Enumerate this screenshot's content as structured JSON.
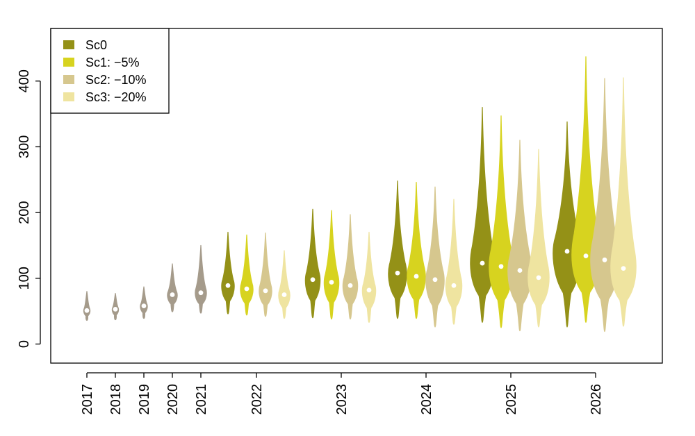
{
  "chart_data": {
    "type": "violin",
    "title": "",
    "xlabel": "",
    "ylabel": "",
    "ylim": [
      -29,
      480
    ],
    "y_ticks": [
      "0",
      "100",
      "200",
      "300",
      "400"
    ],
    "categories": [
      "2017",
      "2018",
      "2019",
      "2020",
      "2021",
      "2022",
      "2023",
      "2024",
      "2025",
      "2026"
    ],
    "historical_color": "#a59b8b",
    "legend": {
      "position": "top-left",
      "entries": [
        {
          "label": "Sc0",
          "color": "#949117"
        },
        {
          "label": "Sc1: −5%",
          "color": "#d7d31f"
        },
        {
          "label": "Sc2: −10%",
          "color": "#d6c78e"
        },
        {
          "label": "Sc3: −20%",
          "color": "#efe4a0"
        }
      ]
    },
    "historical": [
      {
        "year": "2017",
        "min": 36,
        "max": 80,
        "median": 51,
        "spread": 9
      },
      {
        "year": "2018",
        "min": 37,
        "max": 77,
        "median": 53,
        "spread": 9
      },
      {
        "year": "2019",
        "min": 39,
        "max": 87,
        "median": 58,
        "spread": 10
      },
      {
        "year": "2020",
        "min": 49,
        "max": 122,
        "median": 75,
        "spread": 14
      },
      {
        "year": "2021",
        "min": 47,
        "max": 150,
        "median": 78,
        "spread": 16
      }
    ],
    "series": [
      {
        "name": "Sc0",
        "color": "#949117",
        "values": [
          {
            "year": "2022",
            "min": 46,
            "max": 170,
            "median": 89,
            "spread": 18
          },
          {
            "year": "2023",
            "min": 40,
            "max": 205,
            "median": 98,
            "spread": 21
          },
          {
            "year": "2024",
            "min": 39,
            "max": 248,
            "median": 108,
            "spread": 26
          },
          {
            "year": "2025",
            "min": 33,
            "max": 360,
            "median": 123,
            "spread": 34
          },
          {
            "year": "2026",
            "min": 26,
            "max": 338,
            "median": 141,
            "spread": 40
          }
        ]
      },
      {
        "name": "Sc1: −5%",
        "color": "#d7d31f",
        "values": [
          {
            "year": "2022",
            "min": 44,
            "max": 166,
            "median": 84,
            "spread": 18
          },
          {
            "year": "2023",
            "min": 38,
            "max": 203,
            "median": 94,
            "spread": 21
          },
          {
            "year": "2024",
            "min": 39,
            "max": 246,
            "median": 103,
            "spread": 26
          },
          {
            "year": "2025",
            "min": 25,
            "max": 347,
            "median": 118,
            "spread": 34
          },
          {
            "year": "2026",
            "min": 33,
            "max": 437,
            "median": 134,
            "spread": 40
          }
        ]
      },
      {
        "name": "Sc2: −10%",
        "color": "#d6c78e",
        "values": [
          {
            "year": "2022",
            "min": 42,
            "max": 169,
            "median": 81,
            "spread": 18
          },
          {
            "year": "2023",
            "min": 38,
            "max": 197,
            "median": 89,
            "spread": 21
          },
          {
            "year": "2024",
            "min": 26,
            "max": 239,
            "median": 98,
            "spread": 26
          },
          {
            "year": "2025",
            "min": 20,
            "max": 310,
            "median": 112,
            "spread": 34
          },
          {
            "year": "2026",
            "min": 19,
            "max": 404,
            "median": 128,
            "spread": 40
          }
        ]
      },
      {
        "name": "Sc3: −20%",
        "color": "#efe4a0",
        "values": [
          {
            "year": "2022",
            "min": 39,
            "max": 142,
            "median": 75,
            "spread": 16
          },
          {
            "year": "2023",
            "min": 33,
            "max": 170,
            "median": 82,
            "spread": 19
          },
          {
            "year": "2024",
            "min": 30,
            "max": 220,
            "median": 89,
            "spread": 23
          },
          {
            "year": "2025",
            "min": 26,
            "max": 296,
            "median": 101,
            "spread": 30
          },
          {
            "year": "2026",
            "min": 27,
            "max": 405,
            "median": 115,
            "spread": 36
          }
        ]
      }
    ]
  }
}
